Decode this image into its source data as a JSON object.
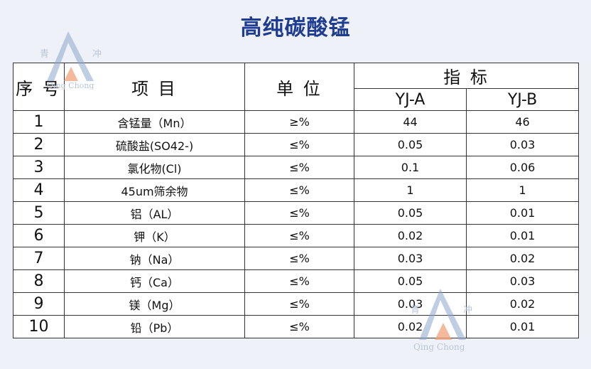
{
  "title": "高纯碳酸锰",
  "header": {
    "seq": "序 号",
    "item": "项 目",
    "unit": "单 位",
    "index": "指 标",
    "grade_a": "YJ-A",
    "grade_b": "YJ-B"
  },
  "rows": [
    {
      "no": "1",
      "item": "含锰量（Mn）",
      "unit": "≥%",
      "a": "44",
      "b": "46"
    },
    {
      "no": "2",
      "item": "硫酸盐(SO42-)",
      "unit": "≤%",
      "a": "0.05",
      "b": "0.03"
    },
    {
      "no": "3",
      "item": "氯化物(Cl)",
      "unit": "≤%",
      "a": "0.1",
      "b": "0.06"
    },
    {
      "no": "4",
      "item": "45um筛余物",
      "unit": "≤%",
      "a": "1",
      "b": "1"
    },
    {
      "no": "5",
      "item": "铝（AL）",
      "unit": "≤%",
      "a": "0.05",
      "b": "0.01"
    },
    {
      "no": "6",
      "item": "钾（K）",
      "unit": "≤%",
      "a": "0.02",
      "b": "0.01"
    },
    {
      "no": "7",
      "item": "钠（Na）",
      "unit": "≤%",
      "a": "0.03",
      "b": "0.02"
    },
    {
      "no": "8",
      "item": "钙（Ca）",
      "unit": "≤%",
      "a": "0.05",
      "b": "0.03"
    },
    {
      "no": "9",
      "item": "镁（Mg）",
      "unit": "≤%",
      "a": "0.03",
      "b": "0.02"
    },
    {
      "no": "10",
      "item": "铅（Pb）",
      "unit": "≤%",
      "a": "0.02",
      "b": "0.01"
    }
  ],
  "watermark": {
    "left_char": "青",
    "right_char": "冲",
    "latin": "Qing Chong",
    "icon": "mountain-logo-icon",
    "colors": {
      "mountain": "#8aa6cc",
      "peak": "#f0a27a"
    }
  }
}
